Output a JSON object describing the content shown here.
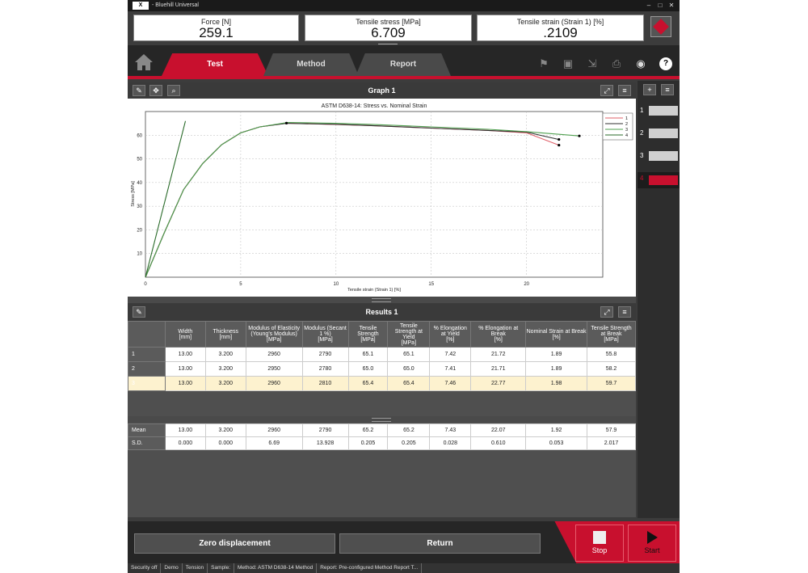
{
  "window": {
    "title": "- Bluehill Universal",
    "logo_text": "X",
    "minimize": "–",
    "maximize": "□",
    "close": "✕"
  },
  "readouts": [
    {
      "label": "Force [N]",
      "value": "259.1"
    },
    {
      "label": "Tensile stress [MPa]",
      "value": "6.709"
    },
    {
      "label": "Tensile strain (Strain 1) [%]",
      "value": ".2109"
    }
  ],
  "nav": {
    "tabs": [
      "Test",
      "Method",
      "Report"
    ]
  },
  "graph_panel": {
    "title": "Graph 1"
  },
  "chart_data": {
    "type": "line",
    "title": "ASTM D638-14: Stress vs. Nominal Strain",
    "xlabel": "Tensile strain (Strain 1) [%]",
    "ylabel": "Stress [MPa]",
    "xlim": [
      0,
      24
    ],
    "ylim": [
      0,
      70
    ],
    "xticks": [
      0,
      5,
      10,
      15,
      20
    ],
    "yticks": [
      10,
      20,
      30,
      40,
      50,
      60
    ],
    "grid": true,
    "legend_position": "top-right",
    "series": [
      {
        "name": "1",
        "color": "#e0606a",
        "x": [
          0,
          1,
          2,
          3,
          4,
          5,
          6,
          7.4,
          10,
          12,
          15,
          18,
          20,
          21.7
        ],
        "y": [
          0,
          19,
          37,
          48,
          56,
          61,
          63.5,
          65.1,
          64.5,
          64,
          63,
          62,
          61,
          55.8
        ]
      },
      {
        "name": "2",
        "color": "#303030",
        "x": [
          0,
          1,
          2,
          3,
          4,
          5,
          6,
          7.4,
          10,
          12,
          15,
          18,
          20,
          21.7
        ],
        "y": [
          0,
          19,
          37,
          48,
          56,
          61,
          63.5,
          65.0,
          64.6,
          64,
          63,
          62,
          61.3,
          58.2
        ]
      },
      {
        "name": "3",
        "color": "#50a050",
        "x": [
          0,
          1,
          2,
          3,
          4,
          5,
          6,
          7.46,
          10,
          12,
          15,
          18,
          20,
          22.77
        ],
        "y": [
          0,
          19,
          37,
          48,
          56,
          61,
          63.5,
          65.4,
          65,
          64.5,
          63.5,
          62.5,
          61.5,
          59.7
        ]
      },
      {
        "name": "4",
        "color": "#2a6b2a",
        "x": [
          0,
          2.1
        ],
        "y": [
          0,
          66
        ]
      }
    ]
  },
  "results_panel": {
    "title": "Results 1"
  },
  "results_table": {
    "headers": [
      "Width\n[mm]",
      "Thickness\n[mm]",
      "Modulus of Elasticity\n(Young's Modulus)\n[MPa]",
      "Modulus (Secant\n1 %)\n[MPa]",
      "Tensile\nStrength\n[MPa]",
      "Tensile\nStrength at\nYield\n[MPa]",
      "% Elongation\nat Yield\n[%]",
      "% Elongation at\nBreak\n[%]",
      "Nominal Strain at Break\n[%]",
      "Tensile Strength\nat Break\n[MPa]"
    ],
    "rows": [
      {
        "label": "1",
        "values": [
          "13.00",
          "3.200",
          "2960",
          "2790",
          "65.1",
          "65.1",
          "7.42",
          "21.72",
          "1.89",
          "55.8"
        ]
      },
      {
        "label": "2",
        "values": [
          "13.00",
          "3.200",
          "2950",
          "2780",
          "65.0",
          "65.0",
          "7.41",
          "21.71",
          "1.89",
          "58.2"
        ]
      },
      {
        "label": "3",
        "values": [
          "13.00",
          "3.200",
          "2960",
          "2810",
          "65.4",
          "65.4",
          "7.46",
          "22.77",
          "1.98",
          "59.7"
        ]
      }
    ],
    "summary": [
      {
        "label": "Mean",
        "values": [
          "13.00",
          "3.200",
          "2960",
          "2790",
          "65.2",
          "65.2",
          "7.43",
          "22.07",
          "1.92",
          "57.9"
        ]
      },
      {
        "label": "S.D.",
        "values": [
          "0.000",
          "0.000",
          "6.69",
          "13.928",
          "0.205",
          "0.205",
          "0.028",
          "0.610",
          "0.053",
          "2.017"
        ]
      }
    ]
  },
  "side_list": [
    "1",
    "2",
    "3",
    "4"
  ],
  "buttons": {
    "zero": "Zero displacement",
    "return": "Return",
    "stop": "Stop",
    "start": "Start"
  },
  "status": [
    "Security off",
    "Demo",
    "Tension",
    "Sample:",
    "Method: ASTM D638-14 Method",
    "Report: Pre-configured Method Report T..."
  ]
}
